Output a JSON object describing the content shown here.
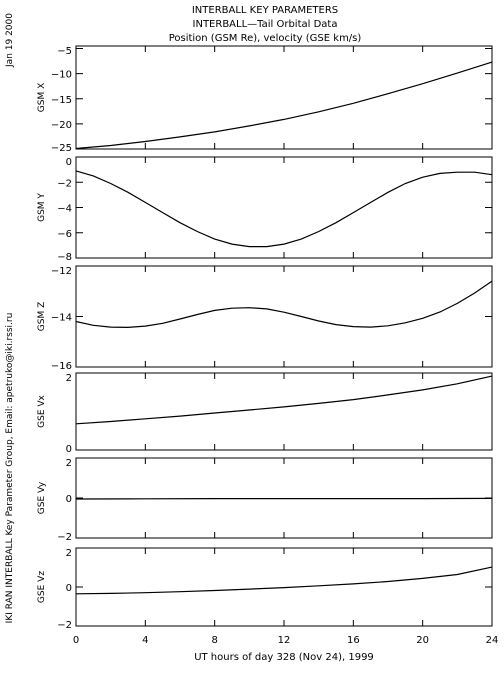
{
  "header": {
    "line1": "INTERBALL KEY PARAMETERS",
    "line2": "INTERBALL—Tail Orbital Data",
    "line3": "Position (GSM Re), velocity (GSE km/s)"
  },
  "side": {
    "date": "Jan 19 2000",
    "credit": "IKI RAN INTERBALL Key Parameter Group, Email: apetruko@iki.rssi.ru"
  },
  "chart_data": [
    {
      "type": "line",
      "ylabel": "GSM X",
      "ylim": [
        -25,
        -4.5
      ],
      "yticks": [
        -5,
        -10,
        -15,
        -20,
        -25
      ],
      "ytick_labels": [
        "−5",
        "−10",
        "−15",
        "−20",
        "−25"
      ],
      "x": [
        0,
        2,
        4,
        6,
        8,
        10,
        12,
        14,
        16,
        18,
        20,
        22,
        24
      ],
      "values": [
        -24.9,
        -24.3,
        -23.5,
        -22.6,
        -21.6,
        -20.4,
        -19.1,
        -17.6,
        -15.9,
        -14.0,
        -12.0,
        -9.9,
        -7.7
      ]
    },
    {
      "type": "line",
      "ylabel": "GSM Y",
      "ylim": [
        -8,
        0
      ],
      "yticks": [
        0,
        -2,
        -4,
        -6,
        -8
      ],
      "ytick_labels": [
        "0",
        "−2",
        "−4",
        "−6",
        "−8"
      ],
      "x": [
        0,
        1,
        2,
        3,
        4,
        5,
        6,
        7,
        8,
        9,
        10,
        11,
        12,
        13,
        14,
        15,
        16,
        17,
        18,
        19,
        20,
        21,
        22,
        23,
        24
      ],
      "values": [
        -1.1,
        -1.5,
        -2.1,
        -2.8,
        -3.6,
        -4.4,
        -5.2,
        -5.9,
        -6.5,
        -6.9,
        -7.1,
        -7.1,
        -6.9,
        -6.5,
        -5.9,
        -5.2,
        -4.4,
        -3.6,
        -2.8,
        -2.1,
        -1.6,
        -1.3,
        -1.2,
        -1.2,
        -1.4
      ]
    },
    {
      "type": "line",
      "ylabel": "GSM Z",
      "ylim": [
        -16,
        -12
      ],
      "yticks": [
        -12,
        -14,
        -16
      ],
      "ytick_labels": [
        "−12",
        "−14",
        "−16"
      ],
      "x": [
        0,
        1,
        2,
        3,
        4,
        5,
        6,
        7,
        8,
        9,
        10,
        11,
        12,
        13,
        14,
        15,
        16,
        17,
        18,
        19,
        20,
        21,
        22,
        23,
        24
      ],
      "values": [
        -14.2,
        -14.35,
        -14.42,
        -14.43,
        -14.38,
        -14.27,
        -14.1,
        -13.92,
        -13.76,
        -13.67,
        -13.65,
        -13.7,
        -13.83,
        -14.0,
        -14.18,
        -14.32,
        -14.4,
        -14.42,
        -14.37,
        -14.25,
        -14.07,
        -13.82,
        -13.48,
        -13.07,
        -12.6
      ]
    },
    {
      "type": "line",
      "ylabel": "GSE Vx",
      "ylim": [
        0,
        2
      ],
      "yticks": [
        2,
        0
      ],
      "ytick_labels": [
        "2",
        "0"
      ],
      "x": [
        0,
        2,
        4,
        6,
        8,
        10,
        12,
        14,
        16,
        18,
        20,
        22,
        24
      ],
      "values": [
        0.68,
        0.74,
        0.81,
        0.88,
        0.96,
        1.04,
        1.12,
        1.21,
        1.31,
        1.43,
        1.56,
        1.72,
        1.92
      ]
    },
    {
      "type": "line",
      "ylabel": "GSE Vy",
      "ylim": [
        -2,
        2
      ],
      "yticks": [
        2,
        0,
        -2
      ],
      "ytick_labels": [
        "2",
        "0",
        "−2"
      ],
      "x": [
        0,
        4,
        8,
        12,
        16,
        20,
        24
      ],
      "values": [
        -0.05,
        -0.04,
        -0.03,
        -0.03,
        -0.03,
        -0.03,
        -0.02
      ]
    },
    {
      "type": "line",
      "ylabel": "GSE Vz",
      "ylim": [
        -2,
        2
      ],
      "yticks": [
        2,
        0,
        -2
      ],
      "ytick_labels": [
        "2",
        "0",
        "−2"
      ],
      "x": [
        0,
        2,
        4,
        6,
        8,
        10,
        12,
        14,
        16,
        18,
        20,
        22,
        24
      ],
      "values": [
        -0.35,
        -0.33,
        -0.29,
        -0.24,
        -0.18,
        -0.11,
        -0.03,
        0.06,
        0.16,
        0.28,
        0.44,
        0.64,
        1.02
      ]
    }
  ],
  "xaxis": {
    "xlim": [
      0,
      24
    ],
    "ticks": [
      0,
      4,
      8,
      12,
      16,
      20,
      24
    ],
    "tick_labels": [
      "0",
      "4",
      "8",
      "12",
      "16",
      "20",
      "24"
    ],
    "label": "UT hours of day 328 (Nov 24), 1999"
  }
}
